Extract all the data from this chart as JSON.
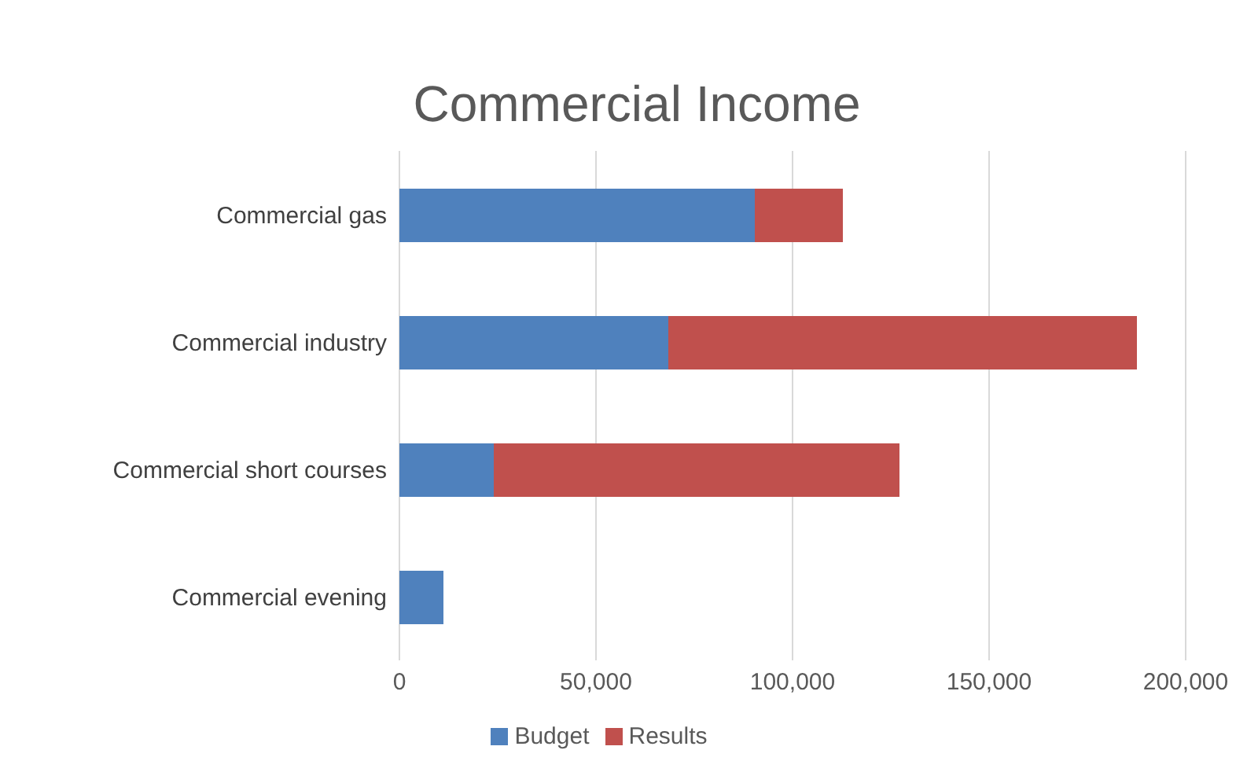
{
  "chart_data": {
    "type": "bar",
    "orientation": "horizontal",
    "stacked": true,
    "title": "Commercial Income",
    "categories": [
      "Commercial gas",
      "Commercial industry",
      "Commercial short courses",
      "Commercial evening"
    ],
    "series": [
      {
        "name": "Budget",
        "color": "#4f81bd",
        "values": [
          90400,
          68400,
          24000,
          11200
        ]
      },
      {
        "name": "Results",
        "color": "#c0504d",
        "values": [
          22400,
          119200,
          103200,
          null
        ]
      }
    ],
    "xlim": [
      0,
      200000
    ],
    "xticks": [
      0,
      {
        "value": 50000,
        "label": "50,000"
      },
      {
        "value": 100000,
        "label": "100,000"
      },
      {
        "value": 150000,
        "label": "150,000"
      },
      {
        "value": 200000,
        "label": "200,000"
      }
    ],
    "grid": "x",
    "legend": "bottom"
  }
}
